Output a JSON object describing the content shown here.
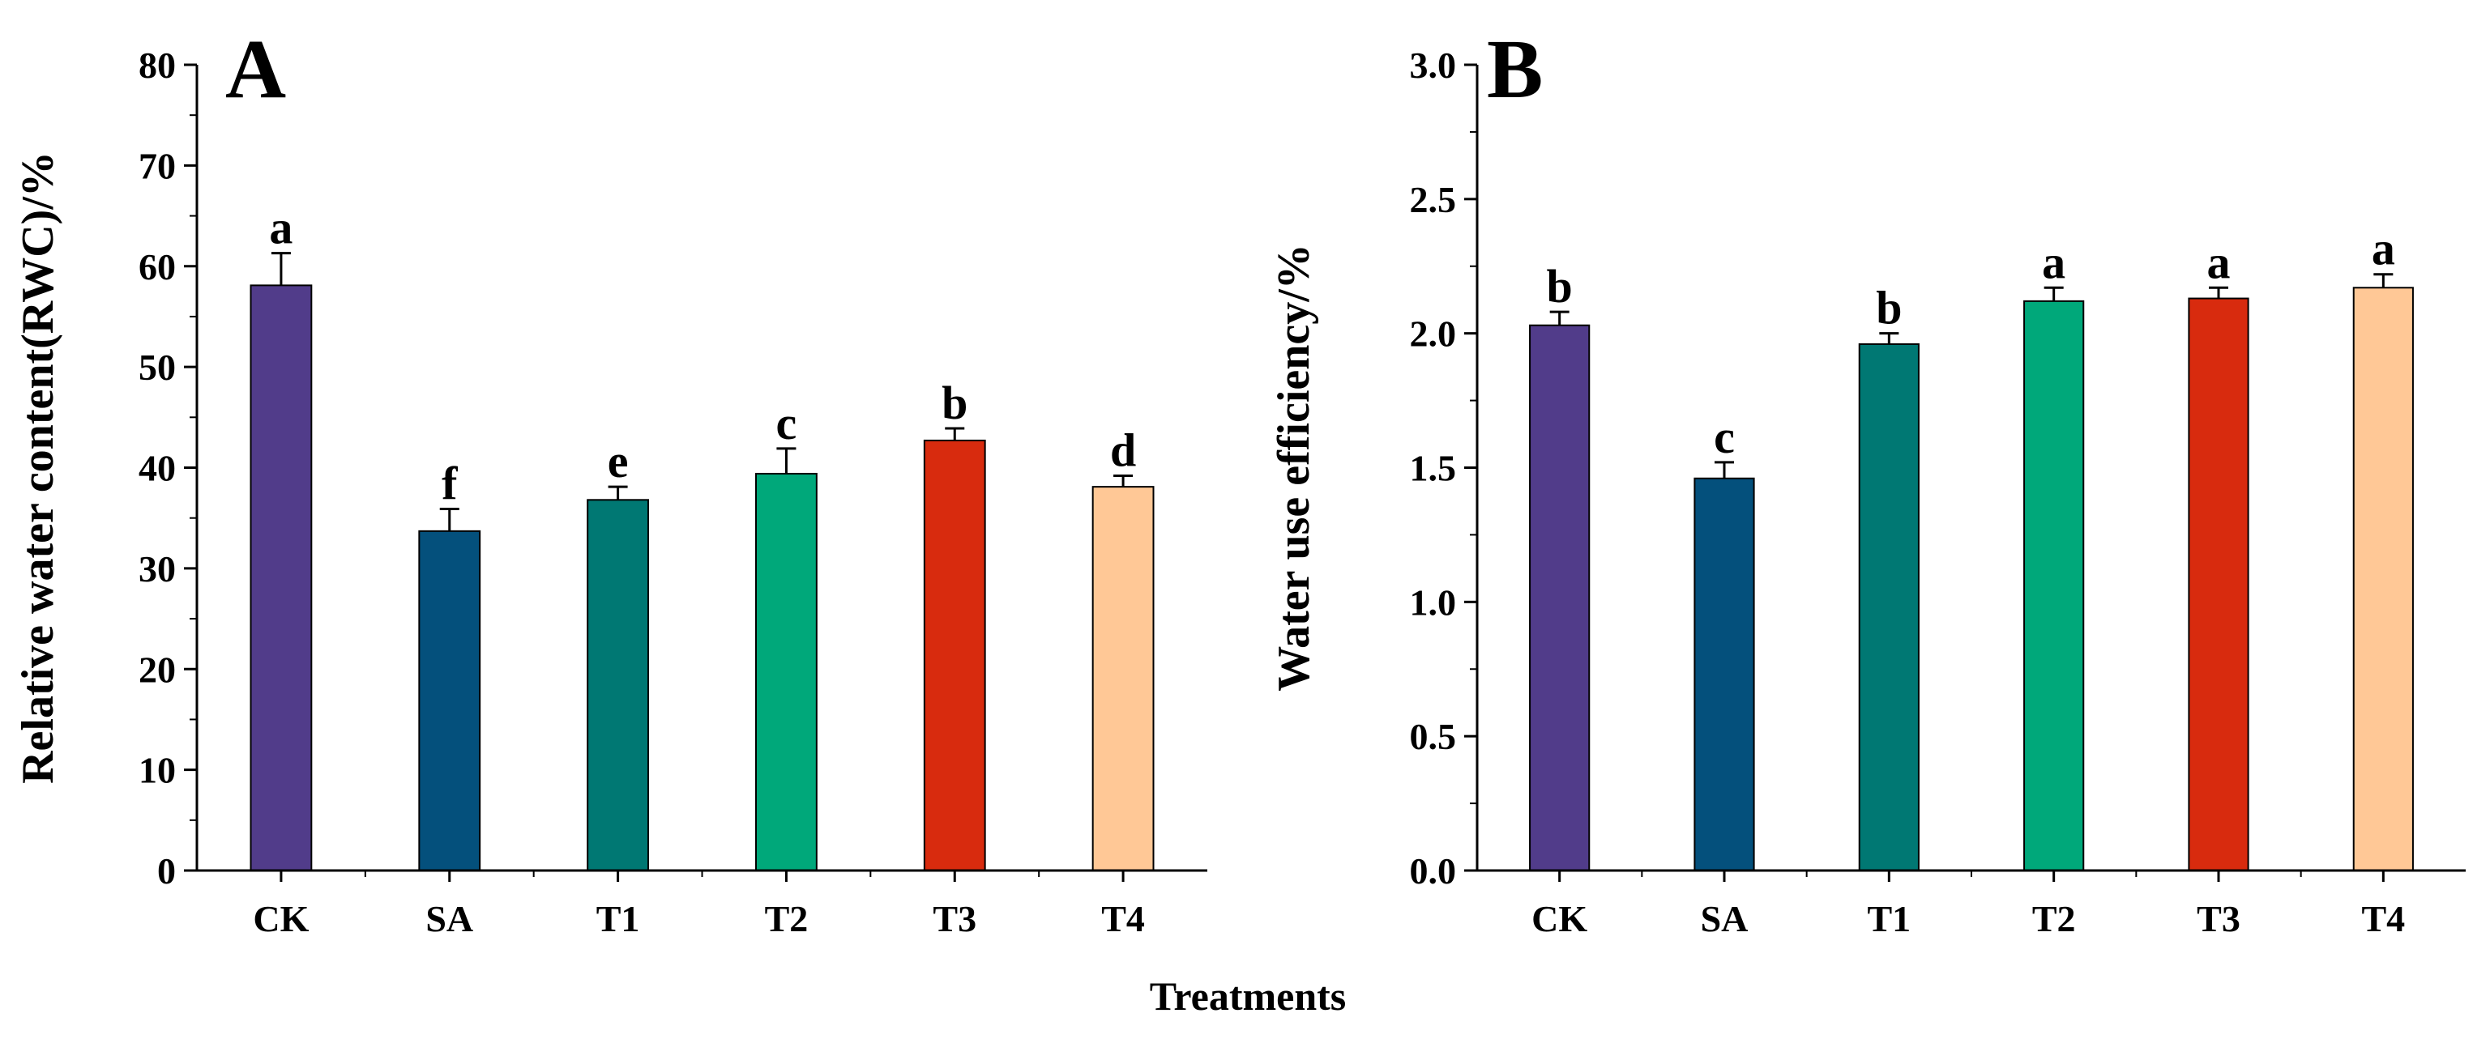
{
  "figure": {
    "shared_xlabel": "Treatments"
  },
  "chart_data": [
    {
      "type": "bar",
      "panel_label": "A",
      "title": "",
      "xlabel": "",
      "ylabel": "Relative water content(RWC)/%",
      "categories": [
        "CK",
        "SA",
        "T1",
        "T2",
        "T3",
        "T4"
      ],
      "values": [
        58.1,
        33.7,
        36.8,
        39.4,
        42.7,
        38.1
      ],
      "errors": [
        3.2,
        2.2,
        1.3,
        2.5,
        1.2,
        1.1
      ],
      "significance": [
        "a",
        "f",
        "e",
        "c",
        "b",
        "d"
      ],
      "colors": [
        "#513C8A",
        "#04507C",
        "#007873",
        "#00A87A",
        "#D82B0E",
        "#FFC896"
      ],
      "ylim": [
        0,
        80
      ],
      "yticks": [
        0,
        10,
        20,
        30,
        40,
        50,
        60,
        70,
        80
      ],
      "yticklabels": [
        "0",
        "10",
        "20",
        "30",
        "40",
        "50",
        "60",
        "70",
        "80"
      ],
      "grid": false,
      "legend": "none"
    },
    {
      "type": "bar",
      "panel_label": "B",
      "title": "",
      "xlabel": "",
      "ylabel": "Water use efficiency/%",
      "categories": [
        "CK",
        "SA",
        "T1",
        "T2",
        "T3",
        "T4"
      ],
      "values": [
        2.03,
        1.46,
        1.96,
        2.12,
        2.13,
        2.17
      ],
      "errors": [
        0.05,
        0.06,
        0.04,
        0.05,
        0.04,
        0.05
      ],
      "significance": [
        "b",
        "c",
        "b",
        "a",
        "a",
        "a"
      ],
      "colors": [
        "#513C8A",
        "#04507C",
        "#007873",
        "#00A87A",
        "#D82B0E",
        "#FFC896"
      ],
      "ylim": [
        0,
        3.0
      ],
      "yticks": [
        0,
        0.5,
        1.0,
        1.5,
        2.0,
        2.5,
        3.0
      ],
      "yticklabels": [
        "0.0",
        "0.5",
        "1.0",
        "1.5",
        "2.0",
        "2.5",
        "3.0"
      ],
      "grid": false,
      "legend": "none"
    }
  ]
}
